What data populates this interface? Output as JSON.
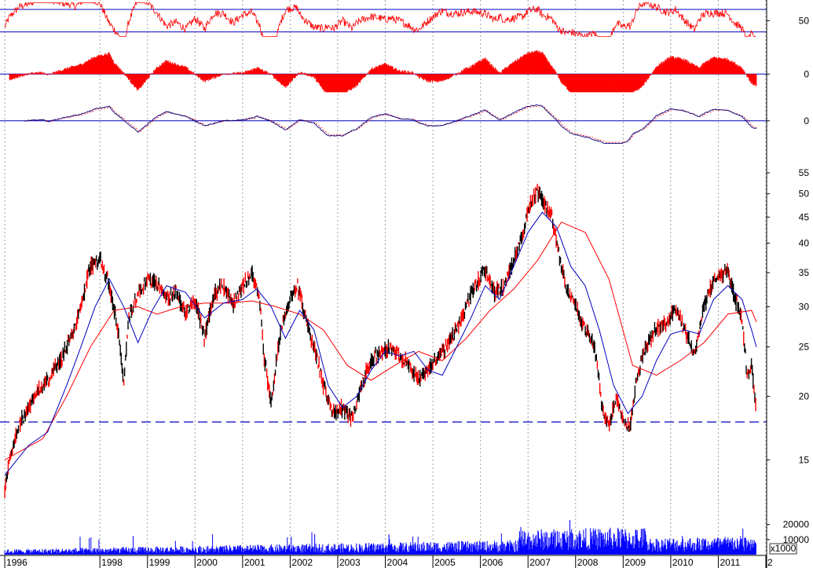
{
  "chart_data": {
    "type": "line",
    "x_range": [
      1995.9,
      2012.0
    ],
    "year_labels": [
      "1996",
      "1998",
      "1999",
      "2000",
      "2001",
      "2002",
      "2003",
      "2004",
      "2005",
      "2006",
      "2007",
      "2008",
      "2009",
      "2010",
      "2011",
      "2"
    ],
    "year_positions": [
      1996.0,
      1998.0,
      1999.0,
      2000.0,
      2001.0,
      2002.0,
      2003.0,
      2004.0,
      2005.0,
      2006.0,
      2007.0,
      2008.0,
      2009.0,
      2010.0,
      2011.0,
      2012.0
    ],
    "panels": {
      "rsi": {
        "ticks": [
          {
            "label": "50",
            "value": 50
          }
        ],
        "hlines": [
          40,
          60
        ],
        "ylim": [
          30,
          67
        ],
        "color": "#ff0000"
      },
      "histogram": {
        "ticks": [
          {
            "label": "0",
            "value": 0
          }
        ],
        "ylim": [
          -1.2,
          1.4
        ],
        "color": "#ff0000"
      },
      "oscillator": {
        "ticks": [
          {
            "label": "0",
            "value": 0
          }
        ],
        "ylim": [
          -1.3,
          1.2
        ],
        "color": "#000080"
      },
      "price": {
        "scale": "log",
        "ylim": [
          11.5,
          58
        ],
        "ticks": [
          {
            "label": "55",
            "value": 55
          },
          {
            "label": "50",
            "value": 50
          },
          {
            "label": "45",
            "value": 45
          },
          {
            "label": "40",
            "value": 40
          },
          {
            "label": "35",
            "value": 35
          },
          {
            "label": "30",
            "value": 30
          },
          {
            "label": "25",
            "value": 25
          },
          {
            "label": "20",
            "value": 20
          },
          {
            "label": "15",
            "value": 15
          }
        ],
        "support_line": 17.8,
        "series": [
          {
            "color": "#ff0000",
            "role": "ma-long",
            "x": [
              1996.0,
              1996.8,
              1997.3,
              1997.8,
              1998.3,
              1998.8,
              1999.2,
              1999.7,
              2000.2,
              2000.7,
              2001.2,
              2001.7,
              2002.2,
              2002.7,
              2003.2,
              2003.7,
              2004.2,
              2004.7,
              2005.2,
              2005.7,
              2006.2,
              2006.7,
              2007.2,
              2007.7,
              2008.2,
              2008.7,
              2009.2,
              2009.7,
              2010.2,
              2010.7,
              2011.2,
              2011.7,
              2011.8
            ],
            "y": [
              15.0,
              16.5,
              20.0,
              25.0,
              29.5,
              30.0,
              29.0,
              30.0,
              30.5,
              30.5,
              30.8,
              30.0,
              29.0,
              27.0,
              23.0,
              21.5,
              23.0,
              24.5,
              23.5,
              26.0,
              29.5,
              32.5,
              37.0,
              44.0,
              42.0,
              34.0,
              23.0,
              22.0,
              23.5,
              25.5,
              29.0,
              29.5,
              28.0
            ]
          },
          {
            "color": "#0000c0",
            "role": "ma-short",
            "x": [
              1996.0,
              1996.5,
              1996.9,
              1997.3,
              1997.6,
              1997.9,
              1998.2,
              1998.5,
              1998.8,
              1999.1,
              1999.4,
              1999.8,
              2000.2,
              2000.6,
              2001.0,
              2001.3,
              2001.6,
              2001.9,
              2002.2,
              2002.5,
              2002.8,
              2003.1,
              2003.4,
              2003.7,
              2004.0,
              2004.3,
              2004.6,
              2004.9,
              2005.2,
              2005.5,
              2005.8,
              2006.1,
              2006.4,
              2006.7,
              2007.0,
              2007.3,
              2007.6,
              2007.9,
              2008.2,
              2008.5,
              2008.8,
              2009.1,
              2009.4,
              2009.7,
              2010.0,
              2010.3,
              2010.6,
              2010.9,
              2011.2,
              2011.5,
              2011.7,
              2011.8
            ],
            "y": [
              14.0,
              16.0,
              17.0,
              21.0,
              25.0,
              30.0,
              34.0,
              30.0,
              25.5,
              29.5,
              33.0,
              32.0,
              28.5,
              30.5,
              31.0,
              32.5,
              30.0,
              26.0,
              29.5,
              27.0,
              21.0,
              19.0,
              20.0,
              22.5,
              24.5,
              24.0,
              24.5,
              22.5,
              22.0,
              25.0,
              28.5,
              33.0,
              31.0,
              36.0,
              42.0,
              46.0,
              43.0,
              36.0,
              33.0,
              27.0,
              21.0,
              18.5,
              20.0,
              23.5,
              26.5,
              27.0,
              26.5,
              31.0,
              33.0,
              31.0,
              27.0,
              25.0
            ]
          },
          {
            "color": "#000000",
            "role": "price",
            "x": [
              1996.0,
              1996.1,
              1996.3,
              1996.5,
              1996.7,
              1996.9,
              1997.1,
              1997.3,
              1997.5,
              1997.7,
              1997.8,
              1998.0,
              1998.2,
              1998.4,
              1998.5,
              1998.6,
              1998.7,
              1998.8,
              1999.0,
              1999.2,
              1999.4,
              1999.6,
              1999.8,
              2000.0,
              2000.2,
              2000.4,
              2000.6,
              2000.8,
              2001.0,
              2001.2,
              2001.35,
              2001.45,
              2001.6,
              2001.8,
              2002.0,
              2002.15,
              2002.3,
              2002.5,
              2002.7,
              2002.9,
              2003.1,
              2003.3,
              2003.5,
              2003.7,
              2003.9,
              2004.1,
              2004.3,
              2004.5,
              2004.7,
              2004.9,
              2005.1,
              2005.3,
              2005.5,
              2005.7,
              2005.9,
              2006.1,
              2006.3,
              2006.5,
              2006.7,
              2006.9,
              2007.0,
              2007.2,
              2007.35,
              2007.5,
              2007.65,
              2007.8,
              2008.0,
              2008.2,
              2008.4,
              2008.55,
              2008.7,
              2008.85,
              2009.0,
              2009.15,
              2009.3,
              2009.5,
              2009.7,
              2009.9,
              2010.1,
              2010.3,
              2010.5,
              2010.7,
              2010.85,
              2011.0,
              2011.2,
              2011.35,
              2011.5,
              2011.6,
              2011.7,
              2011.8
            ],
            "y": [
              13.0,
              15.0,
              17.5,
              19.0,
              20.5,
              21.5,
              23.0,
              25.0,
              27.5,
              33.0,
              36.0,
              37.5,
              33.0,
              26.0,
              21.0,
              28.0,
              30.0,
              32.0,
              34.0,
              33.5,
              31.0,
              32.0,
              29.0,
              31.0,
              26.0,
              32.0,
              33.0,
              30.0,
              33.0,
              35.0,
              31.0,
              24.0,
              19.0,
              27.0,
              31.0,
              33.0,
              29.0,
              25.0,
              21.0,
              18.5,
              19.0,
              18.0,
              21.0,
              23.5,
              24.5,
              25.0,
              24.0,
              23.0,
              21.5,
              22.5,
              24.0,
              25.0,
              27.0,
              30.0,
              33.0,
              35.5,
              32.0,
              33.0,
              37.0,
              42.0,
              46.5,
              50.5,
              48.0,
              45.0,
              38.0,
              33.0,
              30.0,
              27.0,
              25.0,
              19.0,
              17.5,
              20.0,
              18.0,
              17.5,
              22.0,
              25.5,
              27.0,
              28.0,
              30.0,
              27.0,
              24.0,
              30.0,
              33.0,
              34.5,
              35.5,
              31.0,
              28.5,
              22.0,
              23.0,
              18.5
            ]
          }
        ]
      },
      "volume": {
        "ticks": [
          {
            "label": "20000",
            "value": 20000
          },
          {
            "label": "10000",
            "value": 10000
          }
        ],
        "multiplier_label": "x1000",
        "ylim": [
          0,
          24000
        ],
        "color": "#0000ff"
      }
    }
  }
}
